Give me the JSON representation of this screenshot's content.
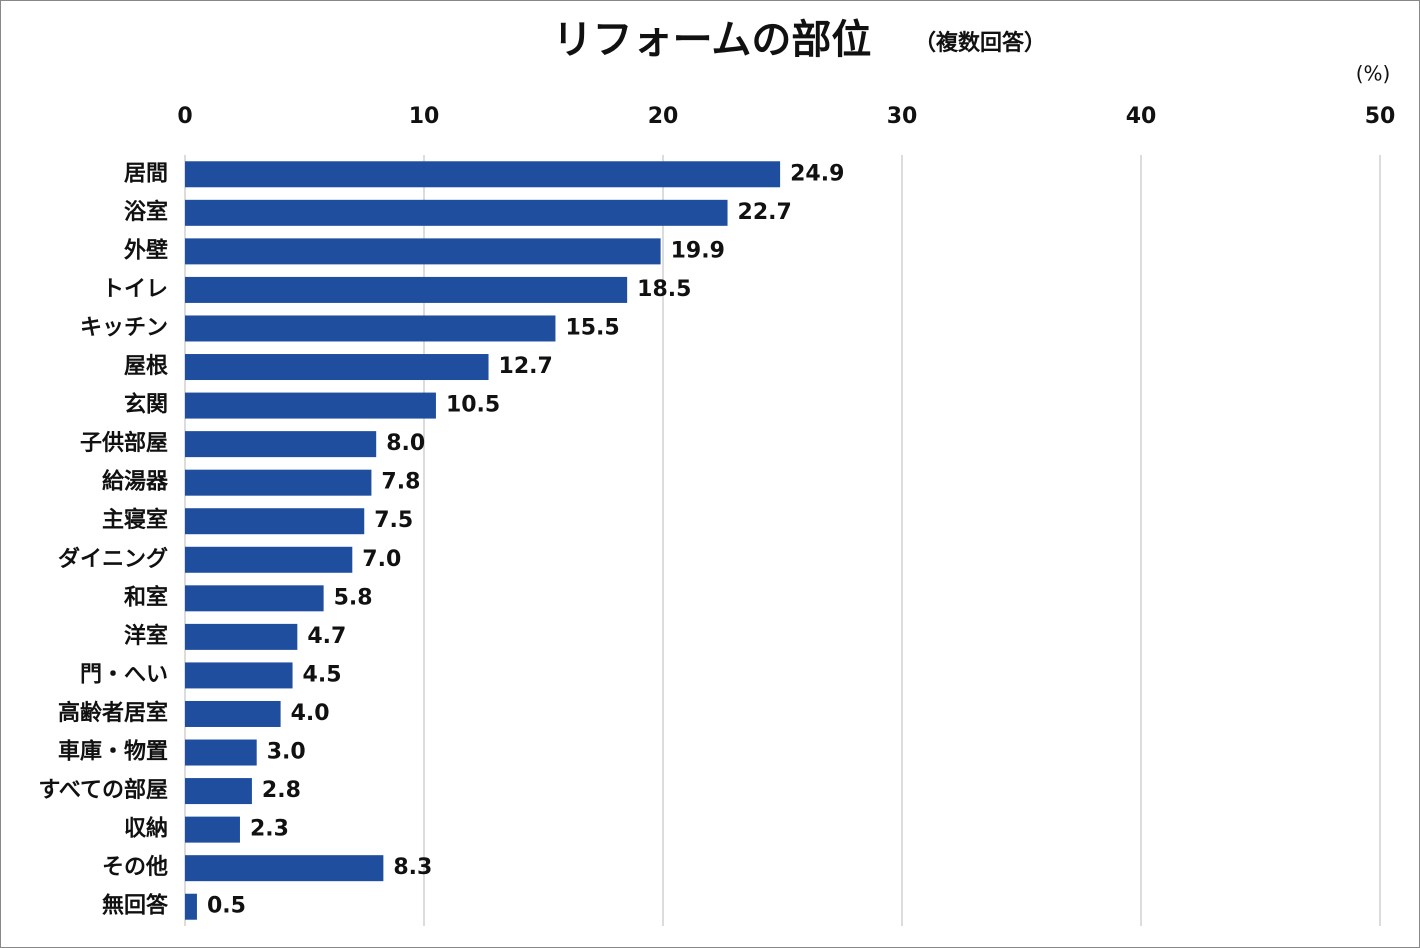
{
  "chart_data": {
    "type": "bar",
    "orientation": "horizontal",
    "title": "リフォームの部位",
    "subtitle": "（複数回答）",
    "unit_label": "(%)",
    "categories": [
      "居間",
      "浴室",
      "外壁",
      "トイレ",
      "キッチン",
      "屋根",
      "玄関",
      "子供部屋",
      "給湯器",
      "主寝室",
      "ダイニング",
      "和室",
      "洋室",
      "門・へい",
      "高齢者居室",
      "車庫・物置",
      "すべての部屋",
      "収納",
      "その他",
      "無回答"
    ],
    "values": [
      24.9,
      22.7,
      19.9,
      18.5,
      15.5,
      12.7,
      10.5,
      8.0,
      7.8,
      7.5,
      7.0,
      5.8,
      4.7,
      4.5,
      4.0,
      3.0,
      2.8,
      2.3,
      8.3,
      0.5
    ],
    "value_labels": [
      "24.9",
      "22.7",
      "19.9",
      "18.5",
      "15.5",
      "12.7",
      "10.5",
      "8.0",
      "7.8",
      "7.5",
      "7.0",
      "5.8",
      "4.7",
      "4.5",
      "4.0",
      "3.0",
      "2.8",
      "2.3",
      "8.3",
      "0.5"
    ],
    "color": "#1f4e9f",
    "xlim": [
      0,
      50
    ],
    "xticks": [
      0,
      10,
      20,
      30,
      40,
      50
    ],
    "grid": true
  }
}
